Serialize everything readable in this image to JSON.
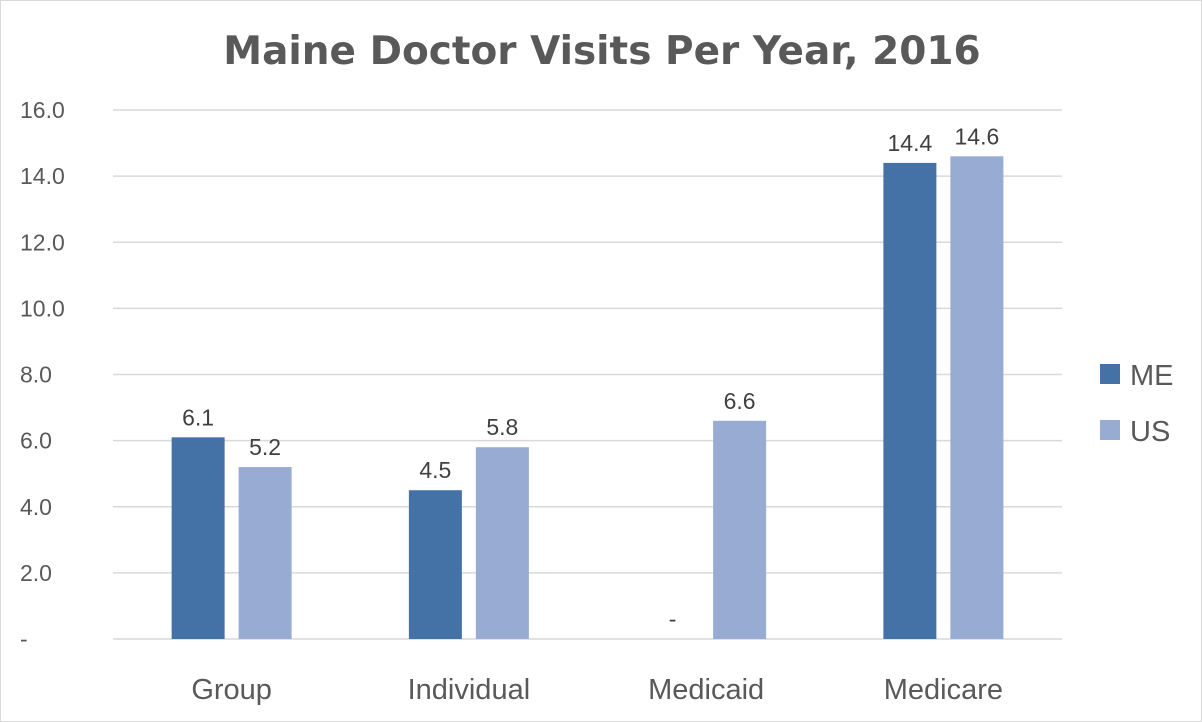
{
  "chart_data": {
    "type": "bar",
    "title": "Maine Doctor Visits Per Year, 2016",
    "categories": [
      "Group",
      "Individual",
      "Medicaid",
      "Medicare"
    ],
    "series": [
      {
        "name": "ME",
        "color": "#4472a6",
        "values": [
          6.1,
          4.5,
          0,
          14.4
        ],
        "labels": [
          "6.1",
          "4.5",
          "-",
          "14.4"
        ]
      },
      {
        "name": "US",
        "color": "#98acd3",
        "values": [
          5.2,
          5.8,
          6.6,
          14.6
        ],
        "labels": [
          "5.2",
          "5.8",
          "6.6",
          "14.6"
        ]
      }
    ],
    "yticks": [
      0,
      2,
      4,
      6,
      8,
      10,
      12,
      14,
      16
    ],
    "ytick_labels": [
      "-",
      "2.0",
      "4.0",
      "6.0",
      "8.0",
      "10.0",
      "12.0",
      "14.0",
      "16.0"
    ],
    "ylim": [
      0,
      16
    ],
    "grid": true,
    "legend_position": "right",
    "gridline_color": "#d9d9d9"
  }
}
